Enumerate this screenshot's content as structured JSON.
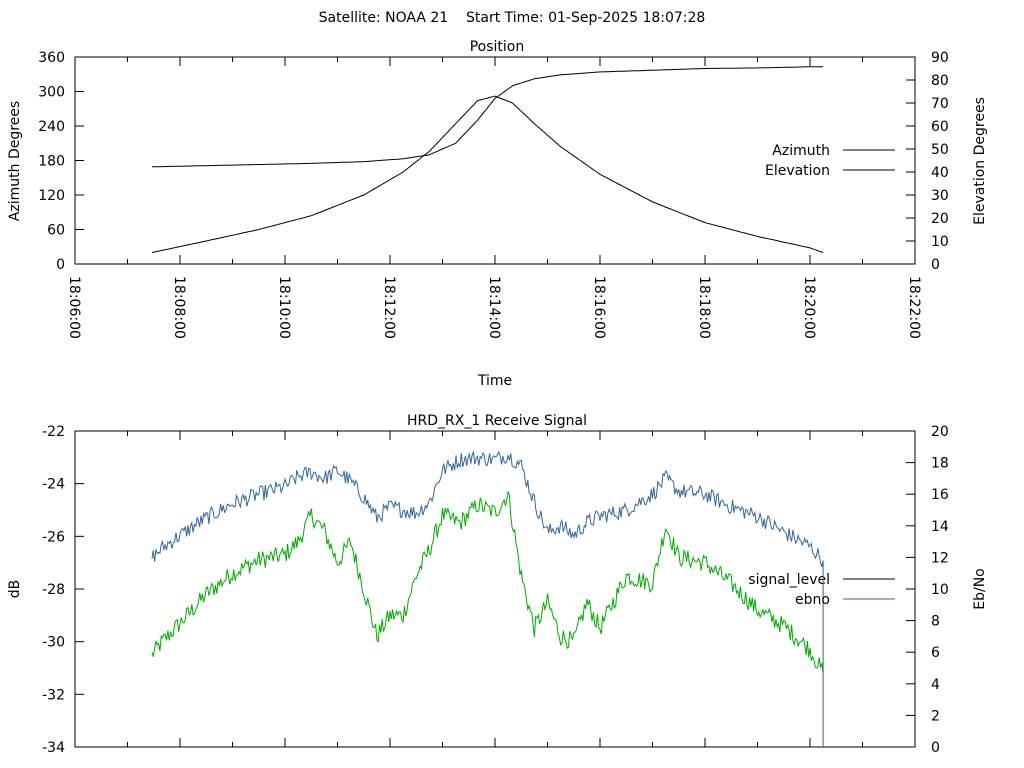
{
  "page": {
    "header": "Satellite: NOAA 21    Start Time: 01-Sep-2025 18:07:28"
  },
  "colors": {
    "azimuth": "#a0302c",
    "elevation": "#336699",
    "signal_level": "#00aa00",
    "ebno": "#336699",
    "legend_signal_level": "#000000",
    "axis": "#000000"
  },
  "chart_data": [
    {
      "type": "line",
      "title": "Position",
      "xlabel": "Time",
      "ylabel": "Azimuth Degrees",
      "y2label": "Elevation Degrees",
      "xlim": [
        "18:06:00",
        "18:22:00"
      ],
      "ylim": [
        0,
        360
      ],
      "y2lim": [
        0,
        90
      ],
      "x_ticks": [
        "18:06:00",
        "18:08:00",
        "18:10:00",
        "18:12:00",
        "18:14:00",
        "18:16:00",
        "18:18:00",
        "18:20:00",
        "18:22:00"
      ],
      "y_ticks": [
        0,
        60,
        120,
        180,
        240,
        300,
        360
      ],
      "y2_ticks": [
        0,
        10,
        20,
        30,
        40,
        50,
        60,
        70,
        80,
        90
      ],
      "legend_position": "right",
      "series": [
        {
          "name": "Azimuth",
          "axis": "left",
          "x": [
            "18:07:28",
            "18:08:30",
            "18:09:30",
            "18:10:30",
            "18:11:30",
            "18:12:15",
            "18:12:45",
            "18:13:15",
            "18:13:40",
            "18:14:00",
            "18:14:20",
            "18:14:45",
            "18:15:15",
            "18:16:00",
            "18:17:00",
            "18:18:00",
            "18:19:00",
            "18:20:00",
            "18:20:15"
          ],
          "values": [
            169,
            171,
            173,
            175,
            178,
            183,
            190,
            210,
            250,
            288,
            310,
            322,
            329,
            334,
            337,
            340,
            341,
            343,
            343
          ]
        },
        {
          "name": "Elevation",
          "axis": "right",
          "x": [
            "18:07:28",
            "18:08:30",
            "18:09:30",
            "18:10:30",
            "18:11:30",
            "18:12:15",
            "18:12:45",
            "18:13:15",
            "18:13:40",
            "18:14:00",
            "18:14:20",
            "18:14:45",
            "18:15:15",
            "18:16:00",
            "18:17:00",
            "18:18:00",
            "18:19:00",
            "18:20:00",
            "18:20:15"
          ],
          "values": [
            5,
            10,
            15,
            21,
            30,
            40,
            49,
            61,
            71,
            73,
            70,
            61,
            51,
            39,
            27,
            18,
            12,
            7,
            5
          ]
        }
      ]
    },
    {
      "type": "line",
      "title": "HRD_RX_1 Receive Signal",
      "ylabel": "dB",
      "y2label": "Eb/No",
      "xlim": [
        "18:06:00",
        "18:22:00"
      ],
      "ylim": [
        -34,
        -22
      ],
      "y2lim": [
        0,
        20
      ],
      "y_ticks": [
        -34,
        -32,
        -30,
        -28,
        -26,
        -24,
        -22
      ],
      "y2_ticks": [
        0,
        2,
        4,
        6,
        8,
        10,
        12,
        14,
        16,
        18,
        20
      ],
      "legend_position": "right",
      "series": [
        {
          "name": "signal_level",
          "axis": "left",
          "x": [
            "18:07:28",
            "18:07:40",
            "18:08:00",
            "18:08:30",
            "18:09:00",
            "18:09:30",
            "18:10:00",
            "18:10:15",
            "18:10:30",
            "18:10:45",
            "18:11:00",
            "18:11:15",
            "18:11:30",
            "18:11:45",
            "18:12:00",
            "18:12:15",
            "18:12:30",
            "18:12:45",
            "18:13:00",
            "18:13:20",
            "18:13:40",
            "18:14:00",
            "18:14:15",
            "18:14:30",
            "18:14:45",
            "18:15:00",
            "18:15:15",
            "18:15:30",
            "18:15:45",
            "18:16:00",
            "18:16:30",
            "18:17:00",
            "18:17:15",
            "18:17:30",
            "18:18:00",
            "18:18:30",
            "18:19:00",
            "18:19:30",
            "18:20:00",
            "18:20:15"
          ],
          "values": [
            -30.5,
            -30.0,
            -29.3,
            -28.2,
            -27.4,
            -26.9,
            -26.7,
            -26.2,
            -25.2,
            -25.8,
            -27.0,
            -26.2,
            -28.0,
            -29.8,
            -29.0,
            -29.0,
            -27.5,
            -26.5,
            -25.2,
            -25.5,
            -24.8,
            -25.1,
            -24.4,
            -27.5,
            -29.5,
            -28.5,
            -29.8,
            -30.0,
            -28.5,
            -29.5,
            -27.5,
            -27.8,
            -25.6,
            -26.8,
            -27.0,
            -27.8,
            -28.8,
            -29.4,
            -30.3,
            -31.2
          ]
        },
        {
          "name": "ebno",
          "axis": "right",
          "x": [
            "18:07:28",
            "18:07:40",
            "18:08:00",
            "18:08:30",
            "18:09:00",
            "18:09:30",
            "18:10:00",
            "18:10:15",
            "18:10:30",
            "18:10:45",
            "18:11:00",
            "18:11:15",
            "18:11:30",
            "18:11:45",
            "18:12:00",
            "18:12:15",
            "18:12:30",
            "18:12:45",
            "18:13:00",
            "18:13:20",
            "18:13:40",
            "18:14:00",
            "18:14:15",
            "18:14:30",
            "18:14:45",
            "18:15:00",
            "18:15:15",
            "18:15:30",
            "18:15:45",
            "18:16:00",
            "18:16:30",
            "18:17:00",
            "18:17:15",
            "18:17:30",
            "18:18:00",
            "18:18:30",
            "18:19:00",
            "18:19:30",
            "18:20:00",
            "18:20:15"
          ],
          "values": [
            12.0,
            12.6,
            13.4,
            14.5,
            15.4,
            16.0,
            16.5,
            17.1,
            17.4,
            17.0,
            17.5,
            16.8,
            15.8,
            14.5,
            15.2,
            15.0,
            14.8,
            15.5,
            17.5,
            18.2,
            18.3,
            18.2,
            18.5,
            17.8,
            15.5,
            13.6,
            14.0,
            13.4,
            14.2,
            14.6,
            15.0,
            16.0,
            17.0,
            16.2,
            16.0,
            15.2,
            14.6,
            13.6,
            12.7,
            11.8
          ]
        }
      ]
    }
  ]
}
